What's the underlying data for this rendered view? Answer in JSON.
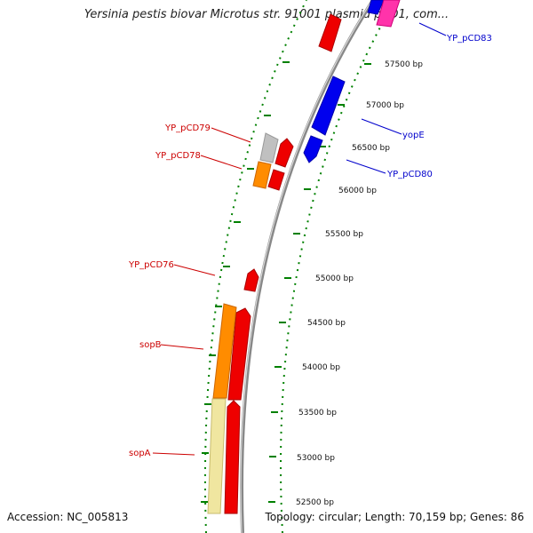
{
  "title": "Yersinia pestis biovar Microtus str. 91001 plasmid pCD1, com...",
  "footer": {
    "accession": "Accession: NC_005813",
    "topology": "Topology: circular; Length: 70,159 bp; Genes: 86"
  },
  "ruler": {
    "ticks": [
      "57500 bp",
      "57000 bp",
      "56500 bp",
      "56000 bp",
      "55500 bp",
      "55000 bp",
      "54500 bp",
      "54000 bp",
      "53500 bp",
      "53000 bp",
      "52500 bp"
    ]
  },
  "genes": {
    "forward": [
      "YP_pCD79",
      "YP_pCD78",
      "YP_pCD76",
      "sopB",
      "sopA"
    ],
    "reverse": [
      "YP_pCD83",
      "yopE",
      "YP_pCD80"
    ]
  },
  "colors": {
    "forward_label": "#cc0000",
    "reverse_label": "#0000cc",
    "gene_red": "#ee0000",
    "gene_blue": "#0000ee",
    "gene_magenta": "#ff33aa",
    "gene_orange": "#ff8c00",
    "gene_yellow": "#f0e6a0",
    "gene_gray": "#c0c0c0",
    "dots": "#008000",
    "backbone": "#888888"
  }
}
